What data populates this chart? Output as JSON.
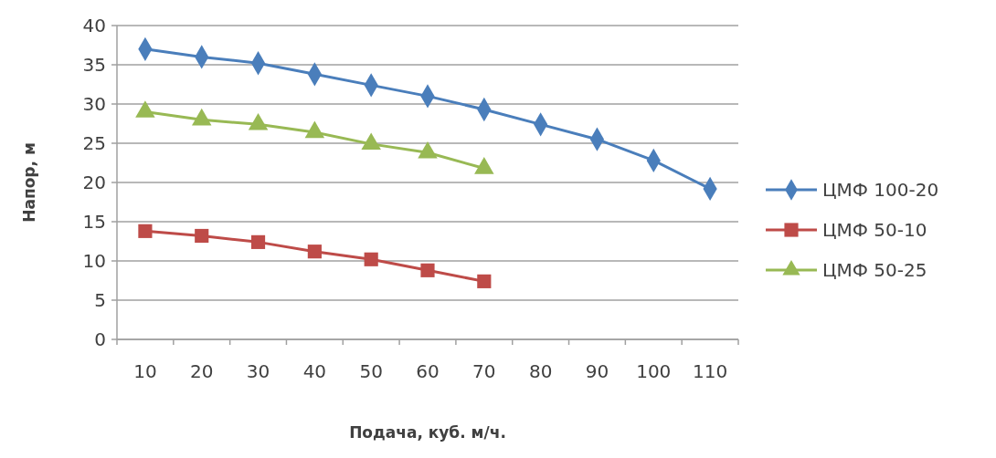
{
  "chart_data": {
    "type": "line",
    "xlabel": "Подача, куб. м/ч.",
    "ylabel": "Напор, м",
    "categories": [
      "10",
      "20",
      "30",
      "40",
      "50",
      "60",
      "70",
      "80",
      "90",
      "100",
      "110"
    ],
    "ylim": [
      0,
      40
    ],
    "yticks": [
      0,
      5,
      10,
      15,
      20,
      25,
      30,
      35,
      40
    ],
    "grid": "y",
    "legend": "right",
    "series": [
      {
        "name": "ЦМФ 100-20",
        "color": "#4a7ebb",
        "marker": "diamond",
        "values": [
          37,
          36,
          35.2,
          33.8,
          32.4,
          31,
          29.3,
          27.4,
          25.5,
          22.8,
          19.2
        ]
      },
      {
        "name": "ЦМФ 50-10",
        "color": "#be4b48",
        "marker": "square",
        "values": [
          13.8,
          13.2,
          12.4,
          11.2,
          10.2,
          8.8,
          7.4,
          null,
          null,
          null,
          null
        ]
      },
      {
        "name": "ЦМФ 50-25",
        "color": "#98b954",
        "marker": "triangle",
        "values": [
          29,
          28,
          27.4,
          26.4,
          24.9,
          23.8,
          21.8,
          null,
          null,
          null,
          null
        ]
      }
    ]
  }
}
